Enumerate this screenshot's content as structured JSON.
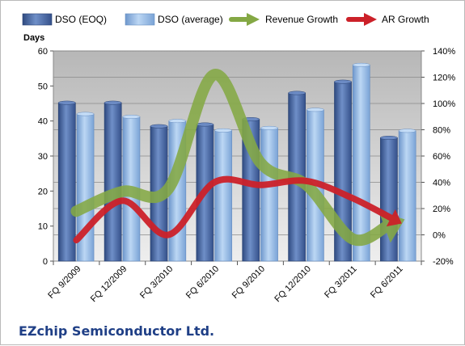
{
  "chart_data": {
    "type": "bar",
    "subtitle": "EZchip Semiconductor Ltd.",
    "ylabel": "Days",
    "ylim": [
      0,
      60
    ],
    "y2lim": [
      -20,
      140
    ],
    "yticks": [
      "0",
      "10",
      "20",
      "30",
      "40",
      "50",
      "60"
    ],
    "y2ticks": [
      "-20%",
      "0%",
      "20%",
      "40%",
      "60%",
      "80%",
      "100%",
      "120%",
      "140%"
    ],
    "categories": [
      "FQ 9/2009",
      "FQ 12/2009",
      "FQ 3/2010",
      "FQ 6/2010",
      "FQ 9/2010",
      "FQ 12/2010",
      "FQ 3/2011",
      "FQ 6/2011"
    ],
    "grid": true,
    "legend_position": "top",
    "series": [
      {
        "name": "DSO (EOQ)",
        "type": "bar",
        "axis": "left",
        "color": "#4a6aa5",
        "values": [
          45.2,
          45.2,
          38.5,
          39.0,
          40.5,
          48.0,
          51.2,
          35.2
        ]
      },
      {
        "name": "DSO (average)",
        "type": "bar",
        "axis": "left",
        "color": "#8fb8e6",
        "values": [
          42.0,
          41.2,
          40.0,
          37.3,
          38.0,
          43.2,
          56.0,
          37.2
        ]
      },
      {
        "name": "Revenue Growth",
        "type": "line",
        "axis": "right",
        "color": "#84a844",
        "values": [
          18,
          33,
          35,
          122,
          55,
          38,
          -3,
          10
        ]
      },
      {
        "name": "AR Growth",
        "type": "line",
        "axis": "right",
        "color": "#cc2129",
        "values": [
          -4,
          26,
          0,
          40,
          38,
          41,
          28,
          10
        ]
      }
    ]
  }
}
